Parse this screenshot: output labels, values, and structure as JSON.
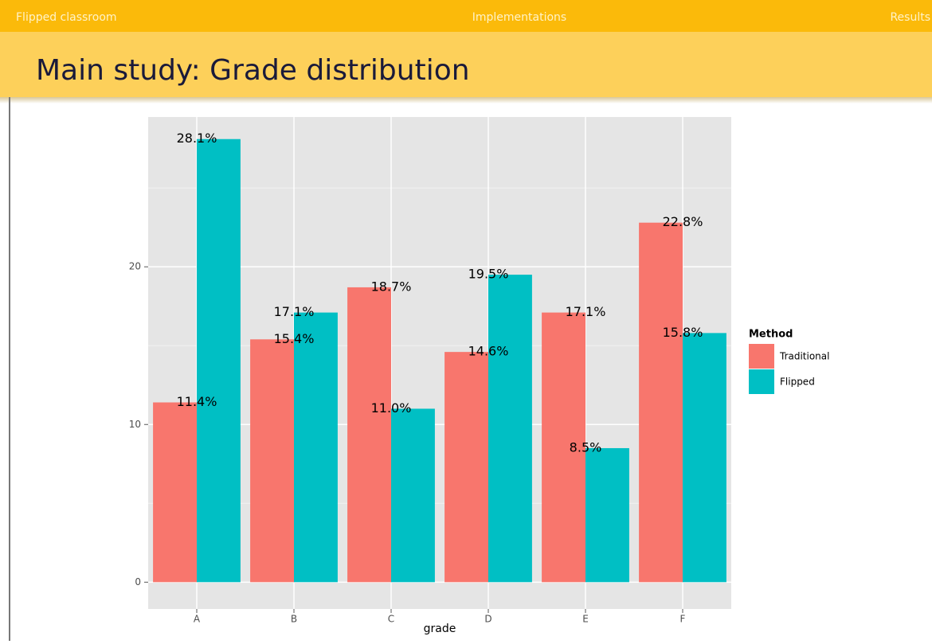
{
  "header": {
    "nav": [
      "Flipped classroom",
      "Implementations",
      "Results"
    ],
    "title": "Main study: Grade distribution"
  },
  "chart_data": {
    "type": "bar",
    "categories": [
      "A",
      "B",
      "C",
      "D",
      "E",
      "F"
    ],
    "series": [
      {
        "name": "Traditional",
        "color": "#f8766d",
        "values": [
          11.4,
          15.4,
          18.7,
          14.6,
          17.1,
          22.8
        ],
        "value_labels": [
          "11.4%",
          "15.4%",
          "18.7%",
          "14.6%",
          "17.1%",
          "22.8%"
        ]
      },
      {
        "name": "Flipped",
        "color": "#00bfc4",
        "values": [
          28.1,
          17.1,
          11.0,
          19.5,
          8.5,
          15.8
        ],
        "value_labels": [
          "28.1%",
          "17.1%",
          "11.0%",
          "19.5%",
          "8.5%",
          "15.8%"
        ]
      }
    ],
    "xlabel": "grade",
    "legend_title": "Method",
    "legend": "right",
    "ylim": [
      -1.7,
      29.5
    ],
    "yticks": [
      0,
      10,
      20
    ],
    "minor_yticks": [
      5,
      15,
      25
    ],
    "grid": true
  }
}
